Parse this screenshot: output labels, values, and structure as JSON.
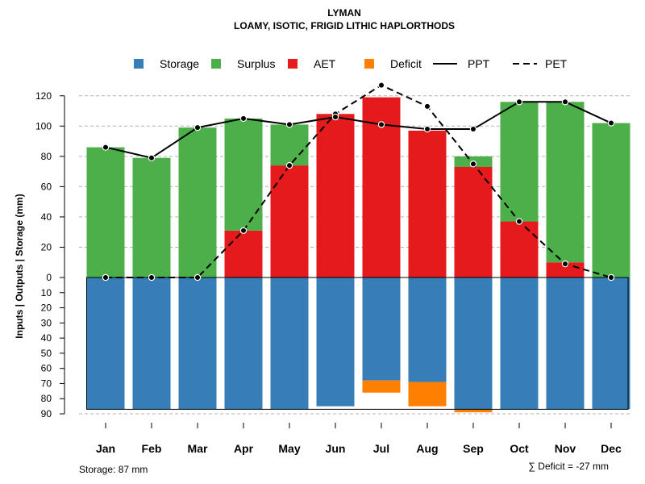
{
  "chart_data": {
    "type": "bar",
    "title": "LYMAN",
    "subtitle": "LOAMY, ISOTIC, FRIGID LITHIC HAPLORTHODS",
    "ylabel": "Inputs | Outputs | Storage    (mm)",
    "ylim_top": [
      0,
      130
    ],
    "ylim_bottom": [
      0,
      90
    ],
    "yticks_top": [
      "0",
      "20",
      "40",
      "60",
      "80",
      "100",
      "120"
    ],
    "yticks_bottom": [
      "10",
      "20",
      "30",
      "40",
      "50",
      "60",
      "70",
      "80",
      "90"
    ],
    "gridlines_y": [
      20,
      40,
      60,
      80,
      100,
      120
    ],
    "categories": [
      "Jan",
      "Feb",
      "Mar",
      "Apr",
      "May",
      "Jun",
      "Jul",
      "Aug",
      "Sep",
      "Oct",
      "Nov",
      "Dec"
    ],
    "legend": [
      {
        "label": "Storage",
        "kind": "box",
        "color": "#377EB8"
      },
      {
        "label": "Surplus",
        "kind": "box",
        "color": "#4DAF4A"
      },
      {
        "label": "AET",
        "kind": "box",
        "color": "#E41A1C"
      },
      {
        "label": "Deficit",
        "kind": "box",
        "color": "#FF7F00"
      },
      {
        "label": "PPT",
        "kind": "solid"
      },
      {
        "label": "PET",
        "kind": "dashed"
      }
    ],
    "series": [
      {
        "name": "AET",
        "color": "#E41A1C",
        "values": [
          0,
          0,
          0,
          31,
          74,
          108,
          119,
          97,
          73,
          37,
          10,
          0
        ]
      },
      {
        "name": "Surplus",
        "color": "#4DAF4A",
        "values": [
          86,
          79,
          99,
          74,
          27,
          0,
          0,
          0,
          7,
          79,
          106,
          102
        ]
      },
      {
        "name": "Storage",
        "color": "#377EB8",
        "values": [
          87,
          87,
          87,
          87,
          87,
          85,
          68,
          69,
          87,
          87,
          87,
          87
        ]
      },
      {
        "name": "Deficit",
        "color": "#FF7F00",
        "values": [
          0,
          0,
          0,
          0,
          0,
          0,
          8,
          16,
          2,
          0,
          0,
          0
        ]
      },
      {
        "name": "PPT",
        "values": [
          86,
          79,
          99,
          105,
          101,
          106,
          101,
          98,
          98,
          116,
          116,
          102
        ]
      },
      {
        "name": "PET",
        "values": [
          0,
          0,
          0,
          31,
          74,
          108,
          127,
          113,
          75,
          37,
          9,
          0
        ]
      }
    ],
    "storage_capacity": 87,
    "footer_left": "Storage: 87 mm",
    "footer_right": "∑ Deficit = -27 mm"
  }
}
